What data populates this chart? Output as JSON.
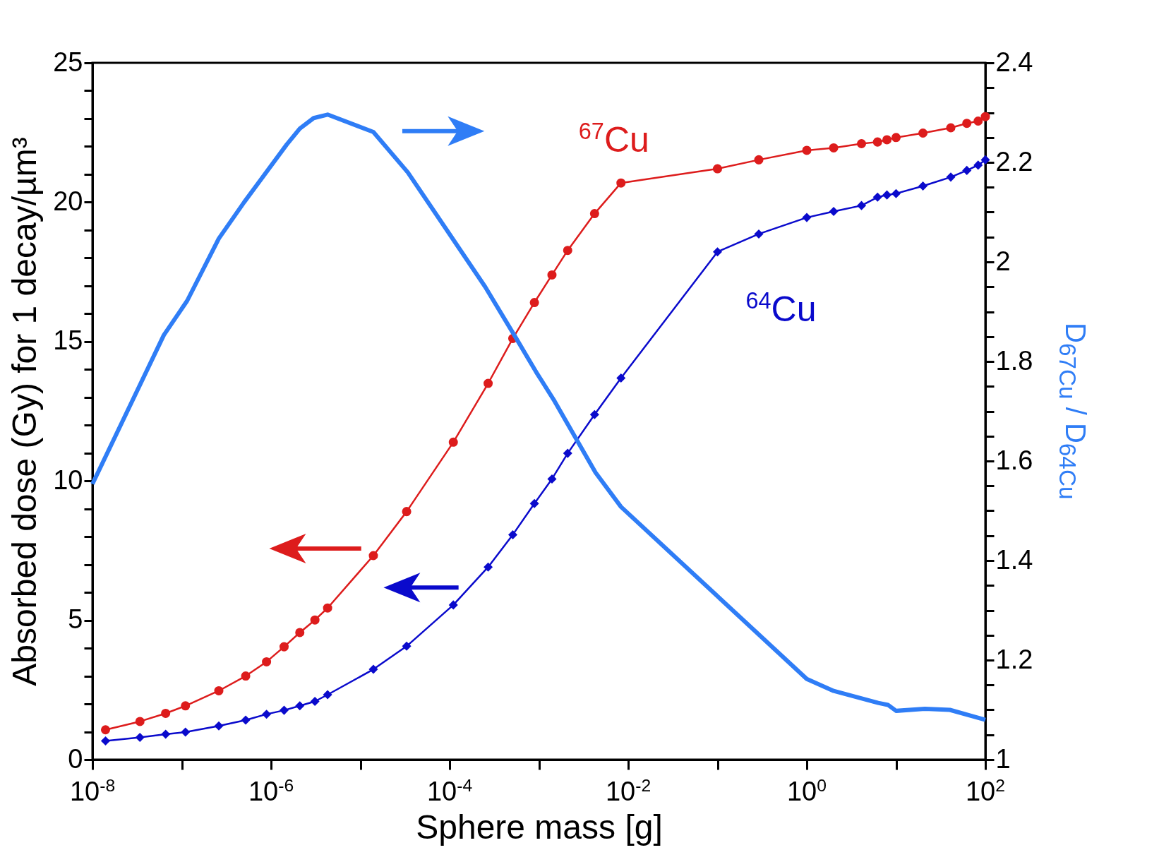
{
  "chart_data": {
    "type": "line",
    "xlabel": "Sphere mass [g]",
    "ylabel": "Absorbed dose (Gy)  for 1 decay/µm³",
    "y2label": "D$_{67Cu}$ / D$_{64Cu}$",
    "log": "x",
    "grid": false,
    "legend": false,
    "x": [
      1.4e-08,
      3.4e-08,
      6.6e-08,
      1.1e-07,
      2.6e-07,
      5.2e-07,
      8.9e-07,
      1.4e-06,
      2.1e-06,
      3.1e-06,
      4.3e-06,
      1.4e-05,
      3.3e-05,
      0.00011,
      0.00027,
      0.00051,
      0.00089,
      0.0014,
      0.0021,
      0.0042,
      0.0083,
      0.1,
      0.29,
      1,
      2,
      4.1,
      6.2,
      7.9,
      10,
      20,
      41,
      62,
      83,
      100
    ],
    "xlim": [
      1e-08,
      100
    ],
    "xticks": [
      {
        "value": 1e-08,
        "label": "10$^{-8}$"
      },
      {
        "value": 1e-07,
        "label": null
      },
      {
        "value": 1e-06,
        "label": "10$^{-6}$"
      },
      {
        "value": 1e-05,
        "label": null
      },
      {
        "value": 0.0001,
        "label": "10$^{-4}$"
      },
      {
        "value": 0.001,
        "label": null
      },
      {
        "value": 0.01,
        "label": "10$^{-2}$"
      },
      {
        "value": 0.1,
        "label": null
      },
      {
        "value": 1,
        "label": "10$^{0}$"
      },
      {
        "value": 10,
        "label": null
      },
      {
        "value": 100,
        "label": "10$^{2}$"
      }
    ],
    "ylim": [
      0,
      25
    ],
    "yticks": [
      0,
      {
        "value": 1,
        "label": null
      },
      {
        "value": 2,
        "label": null
      },
      {
        "value": 3,
        "label": null
      },
      {
        "value": 4,
        "label": null
      },
      5,
      {
        "value": 6,
        "label": null
      },
      {
        "value": 7,
        "label": null
      },
      {
        "value": 8,
        "label": null
      },
      {
        "value": 9,
        "label": null
      },
      10,
      {
        "value": 11,
        "label": null
      },
      {
        "value": 12,
        "label": null
      },
      {
        "value": 13,
        "label": null
      },
      {
        "value": 14,
        "label": null
      },
      15,
      {
        "value": 16,
        "label": null
      },
      {
        "value": 17,
        "label": null
      },
      {
        "value": 18,
        "label": null
      },
      {
        "value": 19,
        "label": null
      },
      20,
      {
        "value": 21,
        "label": null
      },
      {
        "value": 22,
        "label": null
      },
      {
        "value": 23,
        "label": null
      },
      {
        "value": 24,
        "label": null
      },
      25
    ],
    "y2lim": [
      1,
      2.4
    ],
    "y2ticks": [
      1,
      {
        "value": 1.05,
        "label": null
      },
      {
        "value": 1.1,
        "label": null
      },
      {
        "value": 1.15,
        "label": null
      },
      1.2,
      {
        "value": 1.25,
        "label": null
      },
      {
        "value": 1.3,
        "label": null
      },
      {
        "value": 1.35,
        "label": null
      },
      1.4,
      {
        "value": 1.45,
        "label": null
      },
      {
        "value": 1.5,
        "label": null
      },
      {
        "value": 1.55,
        "label": null
      },
      1.6,
      {
        "value": 1.65,
        "label": null
      },
      {
        "value": 1.7,
        "label": null
      },
      {
        "value": 1.75,
        "label": null
      },
      1.8,
      {
        "value": 1.85,
        "label": null
      },
      {
        "value": 1.9,
        "label": null
      },
      {
        "value": 1.95,
        "label": null
      },
      2,
      {
        "value": 2.05,
        "label": null
      },
      {
        "value": 2.1,
        "label": null
      },
      {
        "value": 2.15,
        "label": null
      },
      2.2,
      {
        "value": 2.25,
        "label": null
      },
      {
        "value": 2.3,
        "label": null
      },
      {
        "value": 2.35,
        "label": null
      },
      2.4
    ],
    "series": [
      {
        "name": "$^{67}$Cu",
        "color": "#dd1c1c",
        "marker": "circle",
        "values": [
          1.07,
          1.37,
          1.66,
          1.93,
          2.47,
          3.0,
          3.51,
          4.05,
          4.56,
          5.01,
          5.44,
          7.32,
          8.9,
          11.39,
          13.5,
          15.11,
          16.4,
          17.39,
          18.27,
          19.59,
          20.69,
          21.2,
          21.52,
          21.86,
          21.95,
          22.1,
          22.16,
          22.24,
          22.32,
          22.48,
          22.67,
          22.83,
          22.91,
          23.07
        ]
      },
      {
        "name": "$^{64}$Cu",
        "color": "#0a0acc",
        "marker": "diamond",
        "values": [
          0.67,
          0.8,
          0.91,
          0.99,
          1.21,
          1.42,
          1.63,
          1.77,
          1.93,
          2.09,
          2.33,
          3.24,
          4.07,
          5.55,
          6.91,
          8.07,
          9.19,
          10.07,
          10.99,
          12.38,
          13.69,
          18.22,
          18.86,
          19.45,
          19.67,
          19.88,
          20.18,
          20.26,
          20.31,
          20.58,
          20.9,
          21.14,
          21.33,
          21.52
        ]
      },
      {
        "color": "#2f7df6",
        "axis": "y2",
        "marker": "none",
        "x": [
          1e-08,
          6.3e-08,
          1.15e-07,
          2.6e-07,
          5e-07,
          1.5e-06,
          2.1e-06,
          3e-06,
          4.3e-06,
          1.4e-05,
          3.4e-05,
          0.00025,
          0.00055,
          0.00093,
          0.0015,
          0.0043,
          0.0083,
          1,
          2,
          6.3,
          8.1,
          10,
          21,
          40,
          100
        ],
        "values": [
          1.554,
          1.853,
          1.922,
          2.047,
          2.12,
          2.236,
          2.268,
          2.289,
          2.296,
          2.261,
          2.18,
          1.95,
          1.848,
          1.779,
          1.72,
          1.577,
          1.508,
          1.162,
          1.138,
          1.114,
          1.11,
          1.098,
          1.102,
          1.1,
          1.08
        ]
      }
    ]
  }
}
